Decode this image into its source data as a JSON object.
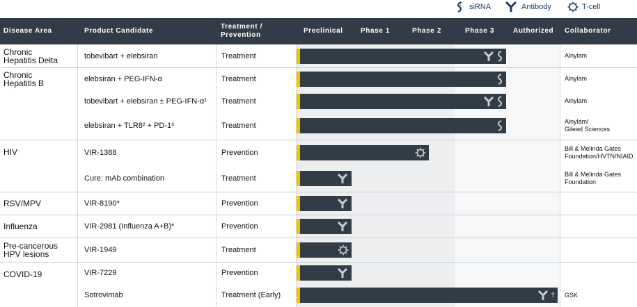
{
  "legend": [
    {
      "icon": "sirna-icon",
      "label": "siRNA"
    },
    {
      "icon": "antibody-icon",
      "label": "Antibody"
    },
    {
      "icon": "tcell-icon",
      "label": "T-cell"
    }
  ],
  "header": {
    "disease_area": "Disease Area",
    "product_candidate": "Product Candidate",
    "treatment_prevention_line1": "Treatment /",
    "treatment_prevention_line2": "Prevention",
    "preclinical": "Preclinical",
    "phase1": "Phase 1",
    "phase2": "Phase 2",
    "phase3": "Phase 3",
    "authorized": "Authorized",
    "collaborator": "Collaborator"
  },
  "areas": [
    {
      "line1": "Chronic",
      "line2": "Hepatitis Delta"
    },
    {
      "line1": "Chronic",
      "line2": "Hepatitis B"
    },
    {
      "line1": "HIV",
      "line2": ""
    },
    {
      "line1": "RSV/MPV",
      "line2": ""
    },
    {
      "line1": "Influenza",
      "line2": ""
    },
    {
      "line1": "Pre-cancerous",
      "line2": "HPV lesions"
    },
    {
      "line1": "COVID-19",
      "line2": ""
    }
  ],
  "rows": [
    {
      "product": "tobevibart + elebsiran",
      "type": "Treatment",
      "collab1": "Alnylam",
      "collab2": "",
      "stage": "Phase 2",
      "progress": 0.8,
      "icons": [
        "antibody-icon",
        "sirna-icon"
      ]
    },
    {
      "product": "elebsiran + PEG-IFN-α",
      "type": "Treatment",
      "collab1": "Alnylam",
      "collab2": "",
      "stage": "Phase 2",
      "progress": 0.8,
      "icons": [
        "sirna-icon"
      ]
    },
    {
      "product": "tobevibart + elebsiran ± PEG-IFN-α¹",
      "type": "Treatment",
      "collab1": "Alnylam",
      "collab2": "",
      "stage": "Phase 2",
      "progress": 0.8,
      "icons": [
        "antibody-icon",
        "sirna-icon"
      ]
    },
    {
      "product": "elebsiran + TLR8² + PD-1³",
      "type": "Treatment",
      "collab1": "Alnylam/",
      "collab2": "Gilead Sciences",
      "stage": "Phase 2",
      "progress": 0.8,
      "icons": [
        "sirna-icon"
      ]
    },
    {
      "product": "VIR-1388",
      "type": "Prevention",
      "collab1": "Bill & Melinda Gates",
      "collab2": "Foundation/HVTN/NIAID",
      "stage": "Phase 1",
      "progress": 0.5,
      "icons": [
        "tcell-icon"
      ]
    },
    {
      "product": "Cure: mAb combination",
      "type": "Treatment",
      "collab1": "Bill & Melinda Gates",
      "collab2": "Foundation",
      "stage": "Preclinical",
      "progress": 0.2,
      "icons": [
        "antibody-icon"
      ]
    },
    {
      "product": "VIR-8190*",
      "type": "Prevention",
      "collab1": "",
      "collab2": "",
      "stage": "Preclinical",
      "progress": 0.2,
      "icons": [
        "antibody-icon"
      ]
    },
    {
      "product": "VIR-2981 (Influenza A+B)*",
      "type": "Prevention",
      "collab1": "",
      "collab2": "",
      "stage": "Preclinical",
      "progress": 0.2,
      "icons": [
        "antibody-icon"
      ]
    },
    {
      "product": "VIR-1949",
      "type": "Treatment",
      "collab1": "",
      "collab2": "",
      "stage": "Preclinical",
      "progress": 0.2,
      "icons": [
        "tcell-icon"
      ]
    },
    {
      "product": "VIR-7229",
      "type": "Prevention",
      "collab1": "",
      "collab2": "",
      "stage": "Preclinical",
      "progress": 0.2,
      "icons": [
        "antibody-icon"
      ]
    },
    {
      "product": "Sotrovimab",
      "type": "Treatment (Early)",
      "collab1": "GSK",
      "collab2": "",
      "stage": "Authorized",
      "progress": 1.0,
      "icons": [
        "antibody-icon"
      ],
      "suffix": "†"
    }
  ],
  "colors": {
    "header_bg": "#323c47",
    "bar": "#323c47",
    "accent": "#f3c300",
    "icon_on_bar": "#c8cdd2",
    "legend_icon": "#1f3a66"
  }
}
